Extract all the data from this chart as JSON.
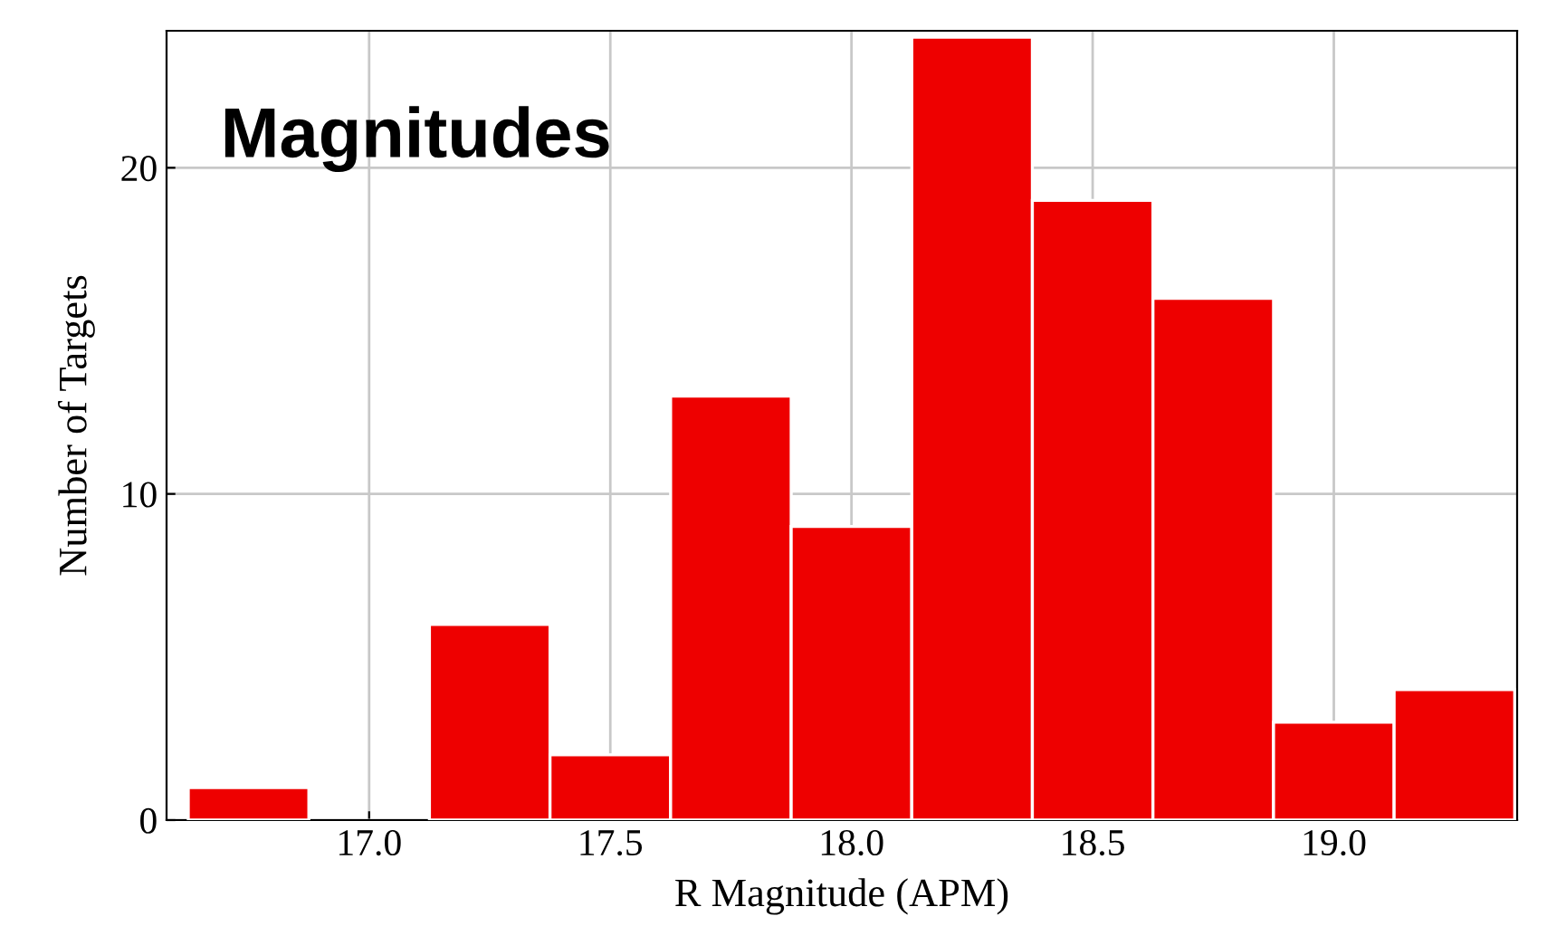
{
  "chart_data": {
    "type": "histogram",
    "title": "Magnitudes",
    "xlabel": "R Magnitude (APM)",
    "ylabel": "Number of Targets",
    "bins": [
      16.625,
      16.875,
      17.125,
      17.375,
      17.625,
      17.875,
      18.125,
      18.375,
      18.625,
      18.875,
      19.125,
      19.375
    ],
    "values": [
      1,
      0,
      6,
      2,
      13,
      9,
      24,
      19,
      16,
      3,
      4
    ],
    "color": "#ee0000",
    "xlim": [
      16.58,
      19.38
    ],
    "xticks": [
      {
        "value": 17.0,
        "label": "17.0"
      },
      {
        "value": 17.5,
        "label": "17.5"
      },
      {
        "value": 18.0,
        "label": "18.0"
      },
      {
        "value": 18.5,
        "label": "18.5"
      },
      {
        "value": 19.0,
        "label": "19.0"
      }
    ],
    "ylim": [
      0,
      24.2
    ],
    "yticks": [
      0,
      10,
      20
    ],
    "grid": true
  }
}
